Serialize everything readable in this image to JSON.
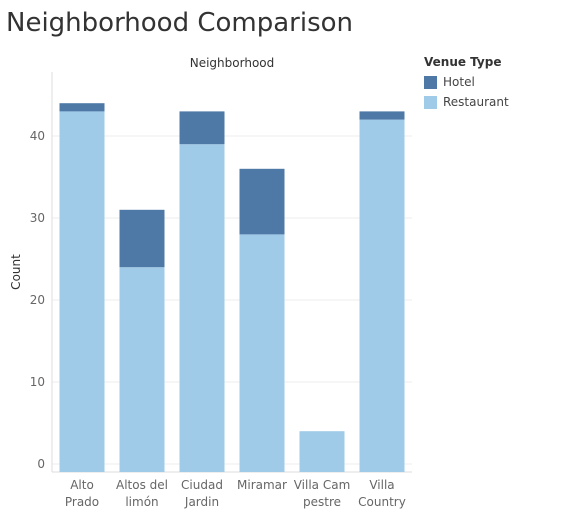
{
  "page": {
    "title": "Neighborhood Comparison"
  },
  "chart_data": {
    "type": "bar",
    "stacked": true,
    "title": "Neighborhood Comparison",
    "header": "Neighborhood",
    "ylabel": "Count",
    "xlabel": "",
    "categories": [
      [
        "Alto",
        "Prado"
      ],
      [
        "Altos del",
        "limón"
      ],
      [
        "Ciudad",
        "Jardin"
      ],
      [
        "Miramar"
      ],
      [
        "Villa Cam",
        "pestre"
      ],
      [
        "Villa",
        "Country"
      ]
    ],
    "series": [
      {
        "name": "Restaurant",
        "color": "#a0cbe8",
        "values": [
          43,
          24,
          39,
          28,
          4,
          42
        ]
      },
      {
        "name": "Hotel",
        "color": "#4e79a7",
        "values": [
          1,
          7,
          4,
          8,
          0,
          1
        ]
      }
    ],
    "ylim": [
      0,
      45
    ],
    "yticks": [
      0,
      10,
      20,
      30,
      40
    ],
    "grid": true,
    "legend": {
      "title": "Venue Type",
      "placement": "right",
      "items": [
        {
          "label": "Hotel",
          "color": "#4e79a7"
        },
        {
          "label": "Restaurant",
          "color": "#a0cbe8"
        }
      ]
    }
  }
}
